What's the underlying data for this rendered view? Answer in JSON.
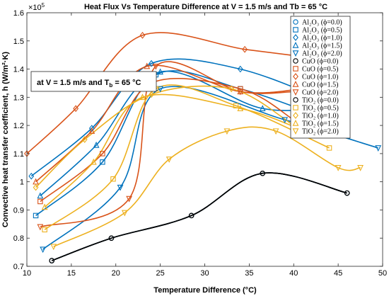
{
  "chart_data": {
    "type": "line",
    "title": "Heat Flux Vs Temperature Difference at V = 1.5 m/s and Tb = 65 °C",
    "xlabel": "Temperature Difference (°C)",
    "ylabel": "Convective heat transfer coefficient, h (W/m²·K)",
    "y_multiplier_label": "×10",
    "y_multiplier_exp": "5",
    "xlim": [
      10,
      50
    ],
    "ylim": [
      0.7,
      1.6
    ],
    "xticks": [
      10,
      15,
      20,
      25,
      30,
      35,
      40,
      45,
      50
    ],
    "xtick_labels": [
      "10",
      "15",
      "20",
      "25",
      "30",
      "35",
      "40",
      "45",
      "50"
    ],
    "yticks": [
      0.7,
      0.8,
      0.9,
      1.0,
      1.1,
      1.2,
      1.3,
      1.4,
      1.5,
      1.6
    ],
    "ytick_labels": [
      "0.7",
      "0.8",
      "0.9",
      "1",
      "1.1",
      "1.2",
      "1.3",
      "1.4",
      "1.5",
      "1.6"
    ],
    "annotation": {
      "prefix": "at V = 1.5 m/s and T",
      "sub": "b",
      "suffix": " = 65 °C"
    },
    "legend_position": "top-right",
    "series": [
      {
        "name": "Al₂O₃ (ϕ=0.0)",
        "color": "#0072BD",
        "marker": "circle",
        "x": [
          12.8,
          19.5,
          28.5,
          36.5,
          46.0
        ],
        "y": [
          0.72,
          0.8,
          0.88,
          1.03,
          0.96
        ]
      },
      {
        "name": "Al₂O₃ (ϕ=0.5)",
        "color": "#0072BD",
        "marker": "square",
        "x": [
          11.0,
          18.5,
          24.5,
          34.0,
          44.0
        ],
        "y": [
          0.88,
          1.07,
          1.38,
          1.33,
          1.22
        ]
      },
      {
        "name": "Al₂O₃ (ϕ=1.0)",
        "color": "#0072BD",
        "marker": "diamond",
        "x": [
          10.5,
          17.3,
          24.0,
          34.0,
          45.0
        ],
        "y": [
          1.02,
          1.19,
          1.42,
          1.4,
          1.27
        ]
      },
      {
        "name": "Al₂O₃ (ϕ=1.5)",
        "color": "#0072BD",
        "marker": "triangle-up",
        "x": [
          11.5,
          17.8,
          25.0,
          36.5,
          45.0
        ],
        "y": [
          0.95,
          1.13,
          1.39,
          1.26,
          1.27
        ]
      },
      {
        "name": "Al₂O₃ (ϕ=2.0)",
        "color": "#0072BD",
        "marker": "triangle-down",
        "x": [
          11.8,
          20.5,
          25.0,
          39.0,
          49.5
        ],
        "y": [
          0.76,
          0.98,
          1.33,
          1.22,
          1.12
        ]
      },
      {
        "name": "CuO (ϕ=0.0)",
        "color": "#000000",
        "marker": "circle",
        "x": [
          12.8,
          19.5,
          28.5,
          36.5,
          46.0
        ],
        "y": [
          0.72,
          0.8,
          0.88,
          1.03,
          0.96
        ]
      },
      {
        "name": "CuO (ϕ=0.5)",
        "color": "#D95319",
        "marker": "square",
        "x": [
          11.5,
          18.5,
          24.0,
          34.0,
          40.0
        ],
        "y": [
          0.93,
          1.1,
          1.35,
          1.33,
          1.22
        ]
      },
      {
        "name": "CuO (ϕ=1.0)",
        "color": "#D95319",
        "marker": "diamond",
        "x": [
          10.0,
          15.5,
          23.0,
          34.5,
          42.0
        ],
        "y": [
          1.1,
          1.26,
          1.52,
          1.47,
          1.44
        ]
      },
      {
        "name": "CuO (ϕ=1.5)",
        "color": "#D95319",
        "marker": "triangle-up",
        "x": [
          11.0,
          17.3,
          23.5,
          34.0,
          41.0
        ],
        "y": [
          1.0,
          1.18,
          1.41,
          1.32,
          1.33
        ]
      },
      {
        "name": "CuO (ϕ=2.0)",
        "color": "#D95319",
        "marker": "triangle-down",
        "x": [
          11.5,
          21.5,
          24.5,
          34.0,
          40.0
        ],
        "y": [
          0.84,
          0.94,
          1.41,
          1.32,
          1.32
        ]
      },
      {
        "name": "TiO₂ (ϕ=0.0)",
        "color": "#000000",
        "marker": "circle",
        "x": [
          12.8,
          19.5,
          28.5,
          36.5,
          46.0
        ],
        "y": [
          0.72,
          0.8,
          0.88,
          1.03,
          0.96
        ]
      },
      {
        "name": "TiO₂ (ϕ=0.5)",
        "color": "#EDB120",
        "marker": "square",
        "x": [
          12.0,
          19.7,
          24.5,
          33.5,
          44.0
        ],
        "y": [
          0.83,
          1.01,
          1.33,
          1.27,
          1.12
        ]
      },
      {
        "name": "TiO₂ (ϕ=1.0)",
        "color": "#EDB120",
        "marker": "diamond",
        "x": [
          11.0,
          16.5,
          24.0,
          33.0,
          40.0
        ],
        "y": [
          0.98,
          1.15,
          1.31,
          1.33,
          1.2
        ]
      },
      {
        "name": "TiO₂ (ϕ=1.5)",
        "color": "#EDB120",
        "marker": "triangle-up",
        "x": [
          12.0,
          17.5,
          23.0,
          34.0,
          40.5
        ],
        "y": [
          0.91,
          1.07,
          1.3,
          1.26,
          1.19
        ]
      },
      {
        "name": "TiO₂ (ϕ=2.0)",
        "color": "#EDB120",
        "marker": "triangle-down",
        "x": [
          13.0,
          21.0,
          26.0,
          32.5,
          38.0,
          45.0,
          47.5
        ],
        "y": [
          0.77,
          0.89,
          1.08,
          1.18,
          1.18,
          1.05,
          1.05
        ]
      }
    ]
  }
}
